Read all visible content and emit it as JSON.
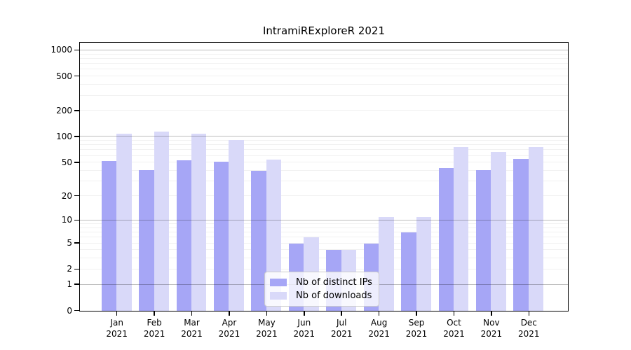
{
  "chart_data": {
    "type": "bar",
    "title": "IntramiRExploreR 2021",
    "categories": [
      "Jan",
      "Feb",
      "Mar",
      "Apr",
      "May",
      "Jun",
      "Jul",
      "Aug",
      "Sep",
      "Oct",
      "Nov",
      "Dec"
    ],
    "category_year": "2021",
    "series": [
      {
        "name": "Nb of distinct IPs",
        "color": "#a6a6f6",
        "values": [
          52,
          41,
          53,
          51,
          40,
          5,
          4,
          5,
          7,
          43,
          41,
          55
        ]
      },
      {
        "name": "Nb of downloads",
        "color": "#d9d9f9",
        "values": [
          108,
          114,
          108,
          92,
          54,
          6,
          4,
          11,
          11,
          76,
          67,
          76
        ]
      }
    ],
    "y_axis": {
      "scale": "log10(value+1)",
      "ticks": [
        0,
        1,
        2,
        5,
        10,
        20,
        50,
        100,
        200,
        500,
        1000
      ],
      "ylim": [
        0,
        1260
      ],
      "grid": true,
      "major_grid_at": [
        1,
        10,
        100,
        1000
      ]
    },
    "x_axis": {
      "label_format": "month over year"
    },
    "legend": {
      "position": "bottom-center-inside"
    },
    "colors": {
      "background": "#ffffff",
      "axis": "#000000"
    }
  }
}
